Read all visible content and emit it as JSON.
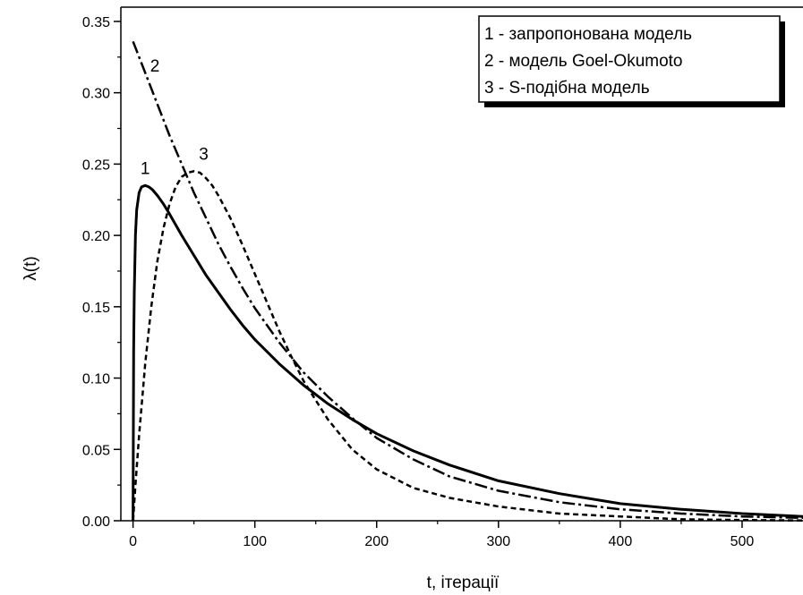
{
  "chart_data": {
    "type": "line",
    "xlabel": "t, ітерації",
    "ylabel": "λ(t)",
    "xlim": [
      -10,
      550
    ],
    "ylim": [
      0,
      0.36
    ],
    "x_ticks": [
      0,
      100,
      200,
      300,
      400,
      500
    ],
    "y_ticks": [
      0.0,
      0.05,
      0.1,
      0.15,
      0.2,
      0.25,
      0.3,
      0.35
    ],
    "grid": false,
    "legend_position": "top-right",
    "legend": [
      "1 - запропонована модель",
      "2 - модель Goel-Okumoto",
      "3 - S-подібна модель"
    ],
    "series": [
      {
        "name": "1",
        "label_at": [
          10,
          0.243
        ],
        "x": [
          0,
          0.5,
          1,
          2,
          3,
          5,
          7,
          10,
          13,
          16,
          20,
          25,
          30,
          40,
          50,
          60,
          70,
          80,
          90,
          100,
          120,
          140,
          160,
          180,
          200,
          230,
          260,
          300,
          350,
          400,
          450,
          500,
          550
        ],
        "y": [
          0,
          0.12,
          0.16,
          0.2,
          0.218,
          0.23,
          0.234,
          0.235,
          0.234,
          0.232,
          0.228,
          0.222,
          0.215,
          0.2,
          0.186,
          0.172,
          0.16,
          0.148,
          0.137,
          0.127,
          0.11,
          0.095,
          0.082,
          0.071,
          0.061,
          0.049,
          0.039,
          0.028,
          0.019,
          0.012,
          0.008,
          0.005,
          0.003
        ]
      },
      {
        "name": "2",
        "label_at": [
          18,
          0.315
        ],
        "x": [
          0,
          10,
          20,
          30,
          40,
          50,
          60,
          70,
          80,
          90,
          100,
          120,
          140,
          160,
          180,
          200,
          230,
          260,
          300,
          350,
          400,
          450,
          500,
          550
        ],
        "y": [
          0.336,
          0.314,
          0.292,
          0.27,
          0.25,
          0.23,
          0.212,
          0.194,
          0.178,
          0.163,
          0.149,
          0.125,
          0.104,
          0.087,
          0.072,
          0.058,
          0.043,
          0.031,
          0.021,
          0.013,
          0.008,
          0.005,
          0.003,
          0.002
        ]
      },
      {
        "name": "3",
        "label_at": [
          58,
          0.253
        ],
        "x": [
          0,
          2,
          5,
          10,
          15,
          20,
          25,
          30,
          35,
          40,
          45,
          50,
          55,
          60,
          65,
          70,
          80,
          90,
          100,
          110,
          120,
          130,
          140,
          160,
          180,
          200,
          230,
          260,
          300,
          350,
          400,
          450,
          500,
          550
        ],
        "y": [
          0,
          0.025,
          0.06,
          0.11,
          0.15,
          0.182,
          0.205,
          0.222,
          0.234,
          0.241,
          0.244,
          0.245,
          0.244,
          0.24,
          0.235,
          0.228,
          0.212,
          0.193,
          0.173,
          0.153,
          0.133,
          0.115,
          0.098,
          0.071,
          0.05,
          0.036,
          0.023,
          0.016,
          0.01,
          0.005,
          0.003,
          0.001,
          0.0005,
          0.0002
        ]
      }
    ]
  }
}
